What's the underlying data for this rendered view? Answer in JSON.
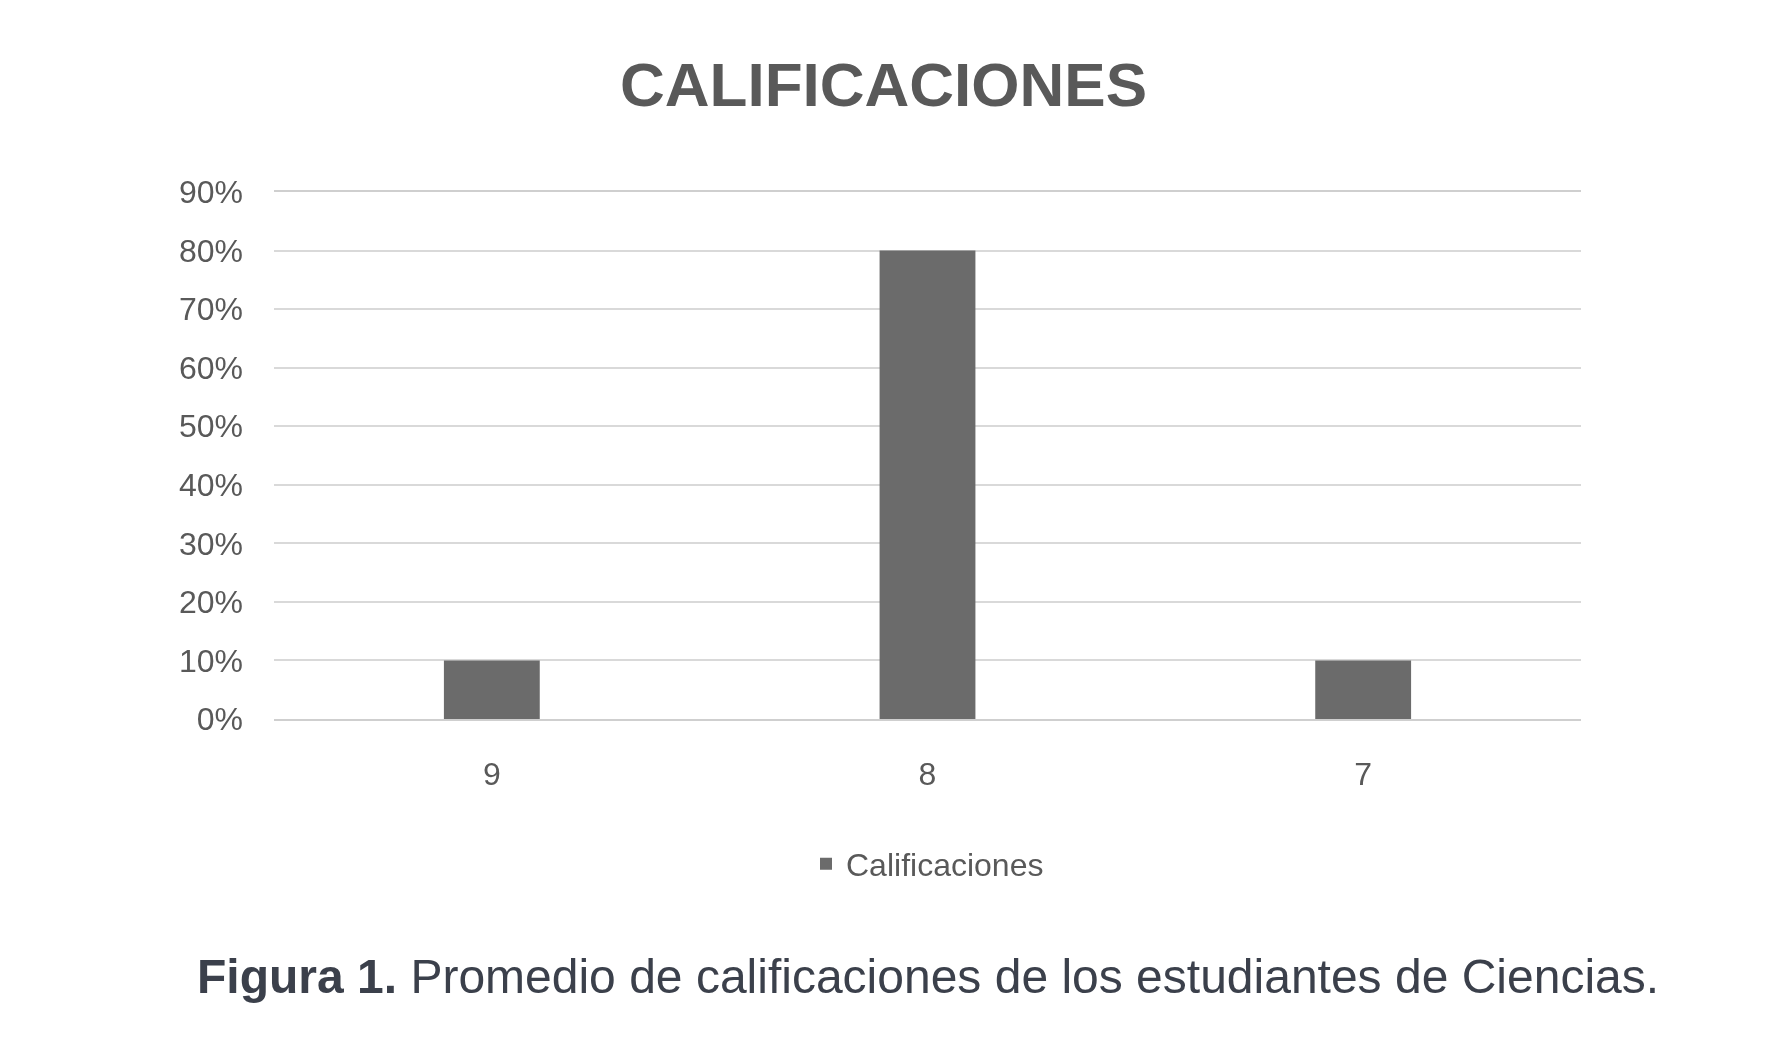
{
  "chart_data": {
    "type": "bar",
    "title": "CALIFICACIONES",
    "categories": [
      "9",
      "8",
      "7"
    ],
    "series": [
      {
        "name": "Calificaciones",
        "color": "#6b6b6b",
        "values": [
          10,
          80,
          10
        ]
      }
    ],
    "ylim": [
      0,
      90
    ],
    "yticks": [
      {
        "value": 0,
        "label": "0%"
      },
      {
        "value": 10,
        "label": "10%"
      },
      {
        "value": 20,
        "label": "20%"
      },
      {
        "value": 30,
        "label": "30%"
      },
      {
        "value": 40,
        "label": "40%"
      },
      {
        "value": 50,
        "label": "50%"
      },
      {
        "value": 60,
        "label": "60%"
      },
      {
        "value": 70,
        "label": "70%"
      },
      {
        "value": 80,
        "label": "80%"
      },
      {
        "value": 90,
        "label": "90%"
      }
    ],
    "grid": "y",
    "legend": "bottom",
    "annotations": [
      "Figura 1.",
      "Promedio de calificaciones de los estudiantes de Ciencias."
    ]
  }
}
